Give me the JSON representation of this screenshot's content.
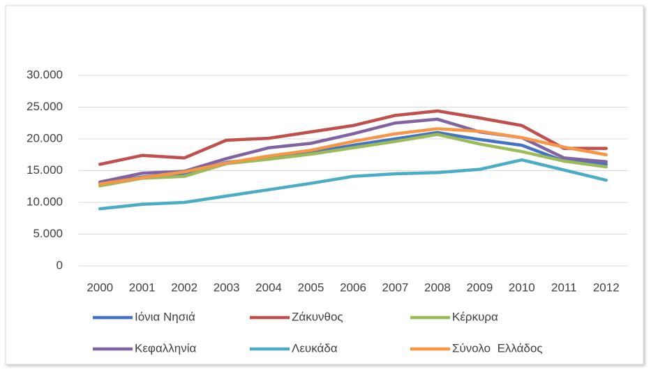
{
  "chart_data": {
    "type": "line",
    "categories": [
      "2000",
      "2001",
      "2002",
      "2003",
      "2004",
      "2005",
      "2006",
      "2007",
      "2008",
      "2009",
      "2010",
      "2011",
      "2012"
    ],
    "series": [
      {
        "name": "Ιόνια Νησιά",
        "color": "#4472c4",
        "values": [
          13000,
          14000,
          14600,
          16300,
          17000,
          17800,
          19000,
          20000,
          21000,
          19900,
          19000,
          16500,
          16000
        ]
      },
      {
        "name": "Ζάκυνθος",
        "color": "#c0504d",
        "values": [
          16000,
          17400,
          17000,
          19800,
          20100,
          21100,
          22100,
          23700,
          24400,
          23300,
          22100,
          18500,
          18500
        ]
      },
      {
        "name": "Κέρκυρα",
        "color": "#9bbb59",
        "values": [
          12600,
          13800,
          14100,
          16100,
          16800,
          17600,
          18600,
          19600,
          20700,
          19200,
          18000,
          16500,
          15600
        ]
      },
      {
        "name": "Κεφαλληνία",
        "color": "#8064a2",
        "values": [
          13200,
          14600,
          14900,
          16900,
          18600,
          19300,
          20800,
          22500,
          23100,
          21100,
          20200,
          17000,
          16400
        ]
      },
      {
        "name": "Λευκάδα",
        "color": "#4bacc6",
        "values": [
          9000,
          9700,
          10000,
          11000,
          12000,
          13000,
          14100,
          14500,
          14700,
          15200,
          16700,
          15100,
          13500
        ]
      },
      {
        "name": "Σύνολο  Ελλάδος",
        "color": "#f79646",
        "values": [
          12900,
          13900,
          14800,
          16200,
          17300,
          18200,
          19600,
          20800,
          21600,
          21200,
          20200,
          18700,
          17500
        ]
      }
    ],
    "ylim": [
      0,
      30000
    ],
    "yticks": [
      0,
      {
        "value": 5000,
        "label": "5.000"
      },
      {
        "value": 10000,
        "label": "10.000"
      },
      {
        "value": 15000,
        "label": "15.000"
      },
      {
        "value": 20000,
        "label": "20.000"
      },
      {
        "value": 25000,
        "label": "25.000"
      },
      {
        "value": 30000,
        "label": "30.000"
      }
    ],
    "grid": true,
    "legend": "bottom"
  }
}
